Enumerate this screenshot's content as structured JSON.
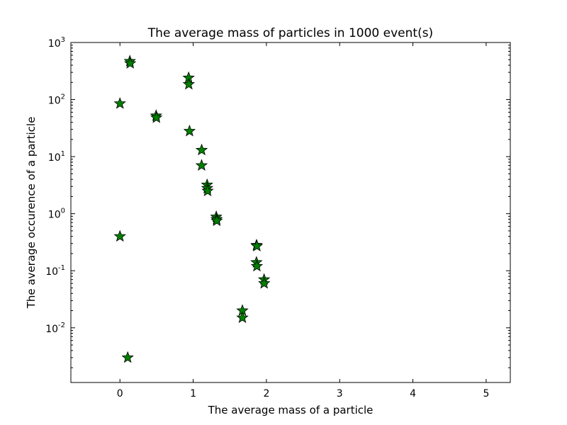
{
  "chart_data": {
    "type": "scatter",
    "title": "The average mass of particles in 1000 event(s)",
    "xlabel": "The average mass of a particle",
    "ylabel": "The average occurence of a particle",
    "xlim": [
      -0.67,
      5.33
    ],
    "ylim": [
      0.0011,
      1000
    ],
    "yscale": "log",
    "grid": false,
    "marker": "star",
    "marker_color": "#008000",
    "x_ticks": [
      "0",
      "1",
      "2",
      "3",
      "4",
      "5"
    ],
    "x_tick_values": [
      0,
      1,
      2,
      3,
      4,
      5
    ],
    "y_ticks": [
      {
        "base": "10",
        "exp": "-2",
        "value": 0.01
      },
      {
        "base": "10",
        "exp": "-1",
        "value": 0.1
      },
      {
        "base": "10",
        "exp": "0",
        "value": 1
      },
      {
        "base": "10",
        "exp": "1",
        "value": 10
      },
      {
        "base": "10",
        "exp": "2",
        "value": 100
      },
      {
        "base": "10",
        "exp": "3",
        "value": 1000
      }
    ],
    "points": [
      {
        "x": 0.0,
        "y": 85
      },
      {
        "x": 0.0,
        "y": 0.4
      },
      {
        "x": 0.106,
        "y": 0.003
      },
      {
        "x": 0.135,
        "y": 470
      },
      {
        "x": 0.14,
        "y": 430
      },
      {
        "x": 0.494,
        "y": 52
      },
      {
        "x": 0.498,
        "y": 48
      },
      {
        "x": 0.938,
        "y": 240
      },
      {
        "x": 0.94,
        "y": 185
      },
      {
        "x": 0.95,
        "y": 28
      },
      {
        "x": 1.116,
        "y": 13
      },
      {
        "x": 1.115,
        "y": 7
      },
      {
        "x": 1.19,
        "y": 3.2
      },
      {
        "x": 1.192,
        "y": 2.8
      },
      {
        "x": 1.197,
        "y": 2.5
      },
      {
        "x": 1.315,
        "y": 0.88
      },
      {
        "x": 1.32,
        "y": 0.8
      },
      {
        "x": 1.322,
        "y": 0.75
      },
      {
        "x": 1.865,
        "y": 0.28
      },
      {
        "x": 1.87,
        "y": 0.27
      },
      {
        "x": 1.864,
        "y": 0.14
      },
      {
        "x": 1.87,
        "y": 0.12
      },
      {
        "x": 1.968,
        "y": 0.07
      },
      {
        "x": 1.969,
        "y": 0.06
      },
      {
        "x": 1.672,
        "y": 0.02
      },
      {
        "x": 1.672,
        "y": 0.015
      }
    ]
  }
}
